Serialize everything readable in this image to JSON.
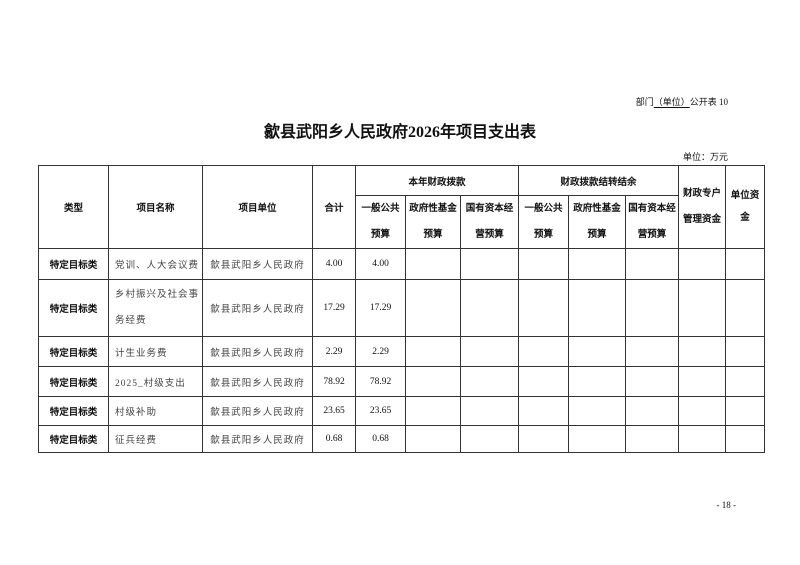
{
  "doc": {
    "ref_prefix": "部门",
    "ref_unit": "（单位）",
    "ref_suffix": "公开表 10",
    "title": "歙县武阳乡人民政府2026年项目支出表",
    "unit_label": "单位：万元",
    "page_number": "- 18 -"
  },
  "table": {
    "headers": {
      "type": "类型",
      "name": "项目名称",
      "org": "项目单位",
      "total": "合计",
      "group1": "本年财政拨款",
      "group2": "财政拨款结转结余",
      "special": "财政专户管理资金",
      "own": "单位资金",
      "sub": [
        "一般公共预算",
        "政府性基金预算",
        "国有资本经营预算",
        "一般公共预算",
        "政府性基金预算",
        "国有资本经营预算"
      ]
    },
    "rows": [
      {
        "type": "特定目标类",
        "name": "党训、人大会议费",
        "org": "歙县武阳乡人民政府",
        "total": "4.00",
        "general": "4.00"
      },
      {
        "type": "特定目标类",
        "name": "乡村振兴及社会事务经费",
        "org": "歙县武阳乡人民政府",
        "total": "17.29",
        "general": "17.29"
      },
      {
        "type": "特定目标类",
        "name": "计生业务费",
        "org": "歙县武阳乡人民政府",
        "total": "2.29",
        "general": "2.29"
      },
      {
        "type": "特定目标类",
        "name": "2025_村级支出",
        "org": "歙县武阳乡人民政府",
        "total": "78.92",
        "general": "78.92"
      },
      {
        "type": "特定目标类",
        "name": "村级补助",
        "org": "歙县武阳乡人民政府",
        "total": "23.65",
        "general": "23.65"
      },
      {
        "type": "特定目标类",
        "name": "征兵经费",
        "org": "歙县武阳乡人民政府",
        "total": "0.68",
        "general": "0.68"
      }
    ]
  }
}
